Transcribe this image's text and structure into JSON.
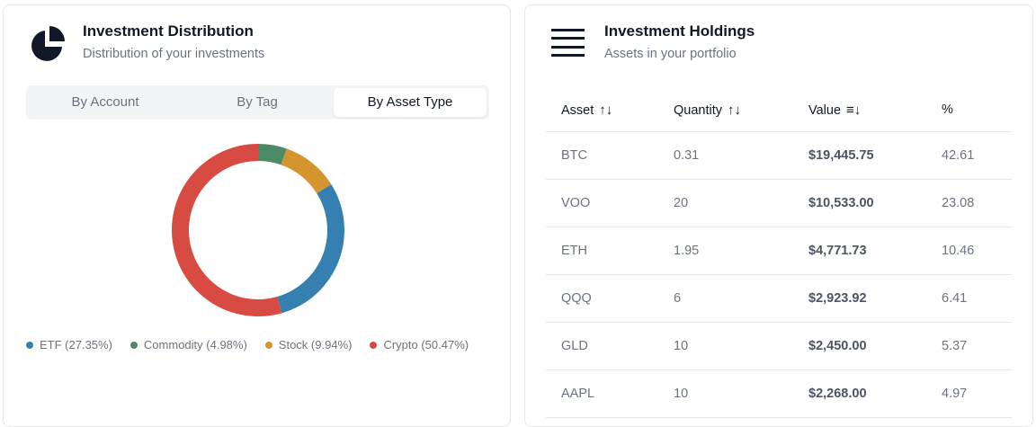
{
  "distribution": {
    "title": "Investment Distribution",
    "subtitle": "Distribution of your investments",
    "icon": "pie-chart-icon",
    "tabs": [
      {
        "label": "By Account",
        "active": false
      },
      {
        "label": "By Tag",
        "active": false
      },
      {
        "label": "By Asset Type",
        "active": true
      }
    ],
    "chart_data": {
      "type": "pie",
      "donut": true,
      "slices": [
        {
          "name": "Commodity",
          "value": 4.98,
          "color": "#4a8a64",
          "legend": "Commodity (4.98%)"
        },
        {
          "name": "Stock",
          "value": 9.94,
          "color": "#d4952f",
          "legend": "Stock (9.94%)"
        },
        {
          "name": "ETF",
          "value": 27.35,
          "color": "#3580b0",
          "legend": "ETF (27.35%)"
        },
        {
          "name": "Crypto",
          "value": 50.47,
          "color": "#d84b43",
          "legend": "Crypto (50.47%)"
        }
      ],
      "legend_order": [
        "ETF",
        "Commodity",
        "Stock",
        "Crypto"
      ],
      "legend_placement": "bottom"
    }
  },
  "holdings": {
    "title": "Investment Holdings",
    "subtitle": "Assets in your portfolio",
    "icon": "menu-icon",
    "columns": [
      {
        "label": "Asset",
        "sort_icon": "↑↓"
      },
      {
        "label": "Quantity",
        "sort_icon": "↑↓"
      },
      {
        "label": "Value",
        "sort_icon": "≡↓"
      },
      {
        "label": "%",
        "sort_icon": ""
      }
    ],
    "rows": [
      [
        "BTC",
        "0.31",
        "$19,445.75",
        "42.61"
      ],
      [
        "VOO",
        "20",
        "$10,533.00",
        "23.08"
      ],
      [
        "ETH",
        "1.95",
        "$4,771.73",
        "10.46"
      ],
      [
        "QQQ",
        "6",
        "$2,923.92",
        "6.41"
      ],
      [
        "GLD",
        "10",
        "$2,450.00",
        "5.37"
      ],
      [
        "AAPL",
        "10",
        "$2,268.00",
        "4.97"
      ]
    ]
  }
}
